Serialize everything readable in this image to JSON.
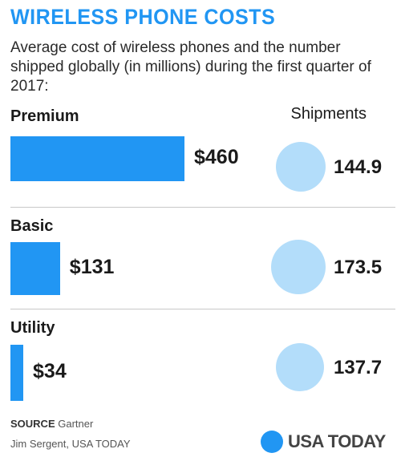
{
  "chart_data": {
    "type": "bar",
    "title": "WIRELESS PHONE COSTS",
    "subtitle": "Average cost of wireless phones and the number shipped globally (in millions) during the first quarter of 2017:",
    "shipments_header": "Shipments",
    "categories": [
      "Premium",
      "Basic",
      "Utility"
    ],
    "series": [
      {
        "values": [
          460,
          131,
          34
        ],
        "labels": [
          "$460",
          "$131",
          "$34"
        ]
      },
      {
        "name": "Shipments",
        "values": [
          144.9,
          173.5,
          137.7
        ],
        "labels": [
          "144.9",
          "173.5",
          "137.7"
        ]
      }
    ],
    "colors": {
      "bar": "#2196f3",
      "circle": "#b3ddfa",
      "title": "#2196f3"
    }
  },
  "footer": {
    "source_label": "SOURCE",
    "source_value": "Gartner",
    "credit": "Jim Sergent, USA TODAY",
    "logo_text": "USA TODAY"
  }
}
